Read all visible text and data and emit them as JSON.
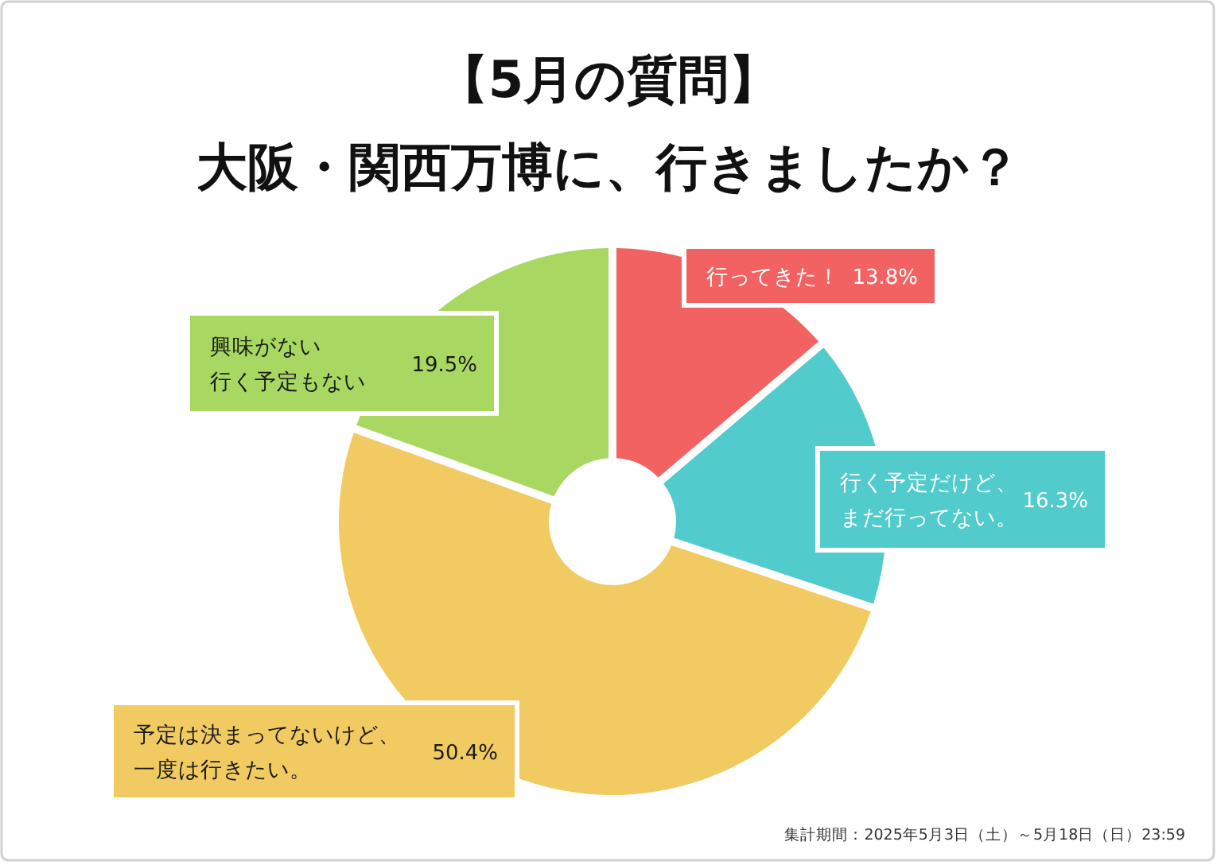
{
  "chart_data": {
    "type": "donut",
    "title": "【5月の質問】",
    "subtitle": "大阪・関西万博に、行きましたか？",
    "categories": [
      "行ってきた！",
      "行く予定だけど、まだ行ってない。",
      "予定は決まってないけど、一度は行きたい。",
      "興味がない行く予定もない"
    ],
    "values": [
      13.8,
      16.3,
      50.4,
      19.5
    ],
    "value_labels": [
      "13.8%",
      "16.3%",
      "50.4%",
      "19.5%"
    ],
    "colors": [
      "#f26262",
      "#52cbcc",
      "#f1cb62",
      "#a8d862"
    ],
    "legend": false,
    "annotations": [
      "集計期間：2025年5月3日（土）～5月18日（日）23:59"
    ]
  }
}
